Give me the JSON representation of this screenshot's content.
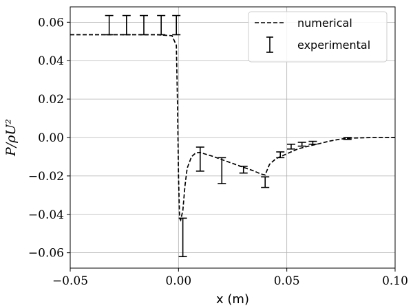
{
  "chart_data": {
    "type": "line",
    "xlabel": "x (m)",
    "ylabel": "P/ρU²",
    "xlim": [
      -0.05,
      0.1
    ],
    "ylim": [
      -0.068,
      0.068
    ],
    "grid": true,
    "legend_position": "top-right",
    "x_ticks": [
      -0.05,
      0.0,
      0.05,
      0.1
    ],
    "x_tick_labels": [
      "−0.05",
      "0.00",
      "0.05",
      "0.10"
    ],
    "y_ticks": [
      0.06,
      0.04,
      0.02,
      0.0,
      -0.02,
      -0.04,
      -0.06
    ],
    "y_tick_labels": [
      "0.06",
      "0.04",
      "0.02",
      "0.00",
      "−0.02",
      "−0.04",
      "−0.06"
    ],
    "series": [
      {
        "name": "numerical",
        "style": "dashed",
        "x": [
          -0.05,
          -0.03,
          -0.01,
          -0.003,
          -0.001,
          -0.0005,
          0.0,
          0.0005,
          0.001,
          0.002,
          0.003,
          0.004,
          0.006,
          0.008,
          0.01,
          0.012,
          0.015,
          0.02,
          0.025,
          0.03,
          0.035,
          0.038,
          0.04,
          0.042,
          0.045,
          0.05,
          0.055,
          0.06,
          0.065,
          0.07,
          0.075,
          0.08,
          0.09,
          0.1
        ],
        "y": [
          0.0535,
          0.0535,
          0.0535,
          0.053,
          0.048,
          0.02,
          -0.02,
          -0.042,
          -0.043,
          -0.038,
          -0.025,
          -0.016,
          -0.01,
          -0.008,
          -0.0078,
          -0.0085,
          -0.0095,
          -0.0115,
          -0.0135,
          -0.0155,
          -0.0175,
          -0.019,
          -0.0195,
          -0.014,
          -0.011,
          -0.0085,
          -0.006,
          -0.0045,
          -0.0032,
          -0.0018,
          -0.0008,
          -0.0003,
          0.0,
          0.0
        ]
      },
      {
        "name": "experimental",
        "style": "errorbar",
        "points": [
          {
            "x": -0.032,
            "low": 0.0535,
            "high": 0.0635
          },
          {
            "x": -0.024,
            "low": 0.0535,
            "high": 0.0635
          },
          {
            "x": -0.016,
            "low": 0.0535,
            "high": 0.0635
          },
          {
            "x": -0.008,
            "low": 0.0535,
            "high": 0.0635
          },
          {
            "x": -0.001,
            "low": 0.0535,
            "high": 0.0635
          },
          {
            "x": 0.002,
            "low": -0.062,
            "high": -0.042
          },
          {
            "x": 0.01,
            "low": -0.0175,
            "high": -0.005
          },
          {
            "x": 0.02,
            "low": -0.024,
            "high": -0.0105
          },
          {
            "x": 0.03,
            "low": -0.0185,
            "high": -0.015
          },
          {
            "x": 0.04,
            "low": -0.026,
            "high": -0.0205
          },
          {
            "x": 0.047,
            "low": -0.0105,
            "high": -0.0075
          },
          {
            "x": 0.052,
            "low": -0.006,
            "high": -0.0035
          },
          {
            "x": 0.057,
            "low": -0.0045,
            "high": -0.0025
          },
          {
            "x": 0.062,
            "low": -0.0035,
            "high": -0.002
          },
          {
            "x": 0.078,
            "low": -0.001,
            "high": 0.0
          }
        ]
      }
    ]
  }
}
